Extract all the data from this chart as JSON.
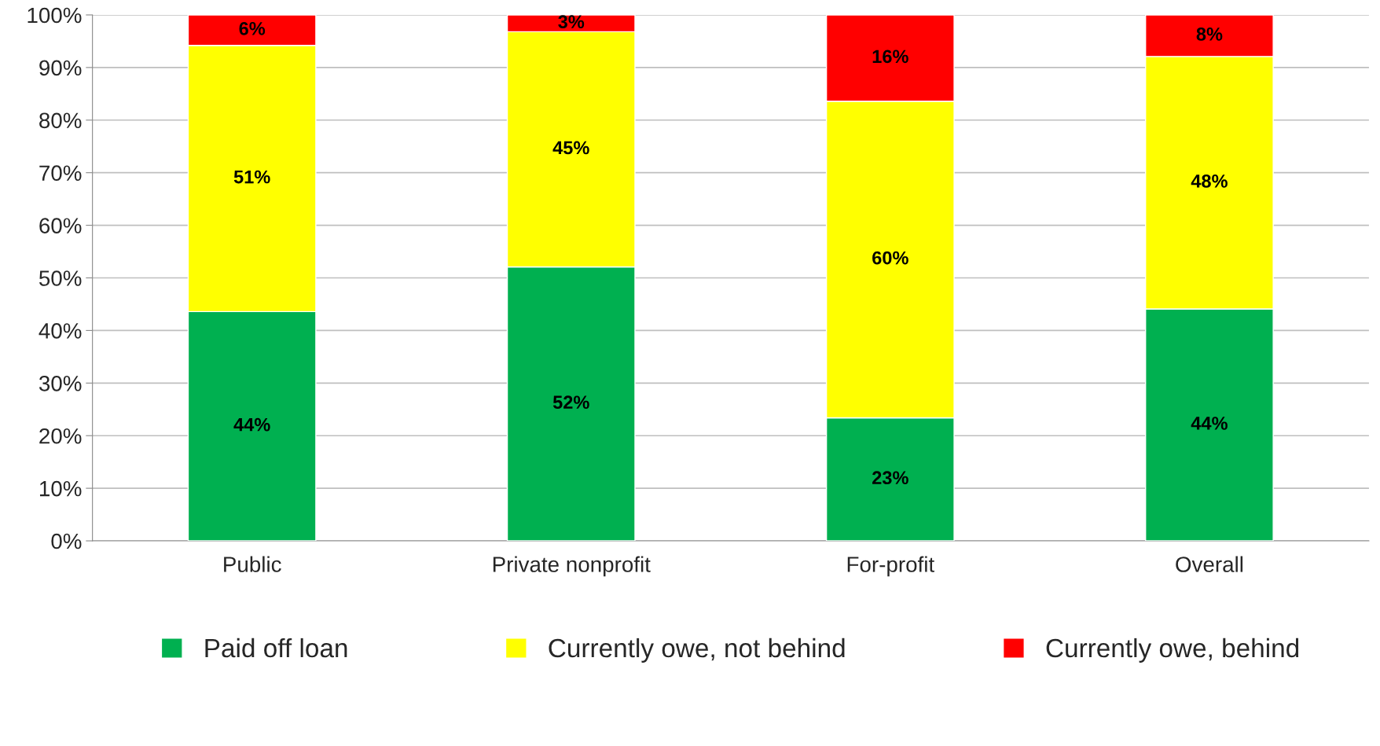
{
  "chart_data": {
    "type": "bar",
    "stacked": true,
    "categories": [
      "Public",
      "Private nonprofit",
      "For-profit",
      "Overall"
    ],
    "series": [
      {
        "name": "Paid off loan",
        "color": "#00b050",
        "values": [
          43.6,
          52.1,
          23.4,
          44.1
        ],
        "value_labels": [
          "44%",
          "52%",
          "23%",
          "44%"
        ]
      },
      {
        "name": "Currently owe, not behind",
        "color": "#ffff00",
        "values": [
          50.6,
          44.7,
          60.2,
          48.0
        ],
        "value_labels": [
          "51%",
          "45%",
          "60%",
          "48%"
        ]
      },
      {
        "name": "Currently owe, behind",
        "color": "#ff0000",
        "values": [
          5.8,
          3.2,
          16.4,
          7.9
        ],
        "value_labels": [
          "6%",
          "3%",
          "16%",
          "8%"
        ]
      }
    ],
    "ylim": [
      0,
      100
    ],
    "yticks": [
      {
        "value": 0,
        "label": "0%"
      },
      {
        "value": 10,
        "label": "10%"
      },
      {
        "value": 20,
        "label": "20%"
      },
      {
        "value": 30,
        "label": "30%"
      },
      {
        "value": 40,
        "label": "40%"
      },
      {
        "value": 50,
        "label": "50%"
      },
      {
        "value": 60,
        "label": "60%"
      },
      {
        "value": 70,
        "label": "70%"
      },
      {
        "value": 80,
        "label": "80%"
      },
      {
        "value": 90,
        "label": "90%"
      },
      {
        "value": 100,
        "label": "100%"
      }
    ],
    "grid": "y",
    "legend": "bottom"
  }
}
